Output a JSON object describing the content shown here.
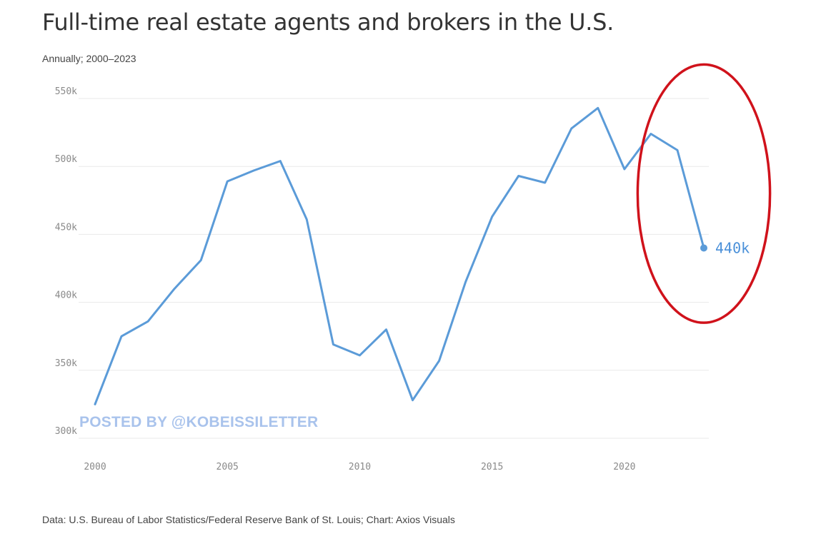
{
  "page": {
    "title": "Full-time real estate agents and brokers in the U.S.",
    "subtitle": "Annually; 2000–2023",
    "source": "Data: U.S. Bureau of Labor Statistics/Federal Reserve Bank of St. Louis; Chart: Axios Visuals",
    "watermark": "POSTED BY @KOBEISSILETTER"
  },
  "colors": {
    "line": "#5b9bd8",
    "grid": "#e9e9e9",
    "highlight_ellipse": "#d0121b",
    "end_label": "#4a90d9"
  },
  "chart_data": {
    "type": "line",
    "title": "Full-time real estate agents and brokers in the U.S.",
    "subtitle": "Annually; 2000–2023",
    "xlabel": "",
    "ylabel": "",
    "xlim": [
      2000,
      2023
    ],
    "ylim": [
      300000,
      550000
    ],
    "yticks": [
      {
        "value": 550000,
        "label": "550k"
      },
      {
        "value": 500000,
        "label": "500k"
      },
      {
        "value": 450000,
        "label": "450k"
      },
      {
        "value": 400000,
        "label": "400k"
      },
      {
        "value": 350000,
        "label": "350k"
      },
      {
        "value": 300000,
        "label": "300k"
      }
    ],
    "xticks": [
      {
        "value": 2000,
        "label": "2000"
      },
      {
        "value": 2005,
        "label": "2005"
      },
      {
        "value": 2010,
        "label": "2010"
      },
      {
        "value": 2015,
        "label": "2015"
      },
      {
        "value": 2020,
        "label": "2020"
      }
    ],
    "grid": true,
    "series": [
      {
        "name": "Full-time real estate agents and brokers",
        "x": [
          2000,
          2001,
          2002,
          2003,
          2004,
          2005,
          2006,
          2007,
          2008,
          2009,
          2010,
          2011,
          2012,
          2013,
          2014,
          2015,
          2016,
          2017,
          2018,
          2019,
          2020,
          2021,
          2022,
          2023
        ],
        "values": [
          325000,
          375000,
          386000,
          410000,
          431000,
          489000,
          497000,
          504000,
          461000,
          369000,
          361000,
          380000,
          328000,
          357000,
          415000,
          463000,
          493000,
          488000,
          528000,
          543000,
          498000,
          524000,
          512000,
          440000
        ]
      }
    ],
    "annotations": [
      {
        "type": "end-label",
        "x": 2023,
        "value": 440000,
        "text": "440k"
      },
      {
        "type": "highlight-ellipse",
        "x_range": [
          2020.5,
          2025.5
        ],
        "y_range": [
          385000,
          575000
        ]
      }
    ]
  }
}
